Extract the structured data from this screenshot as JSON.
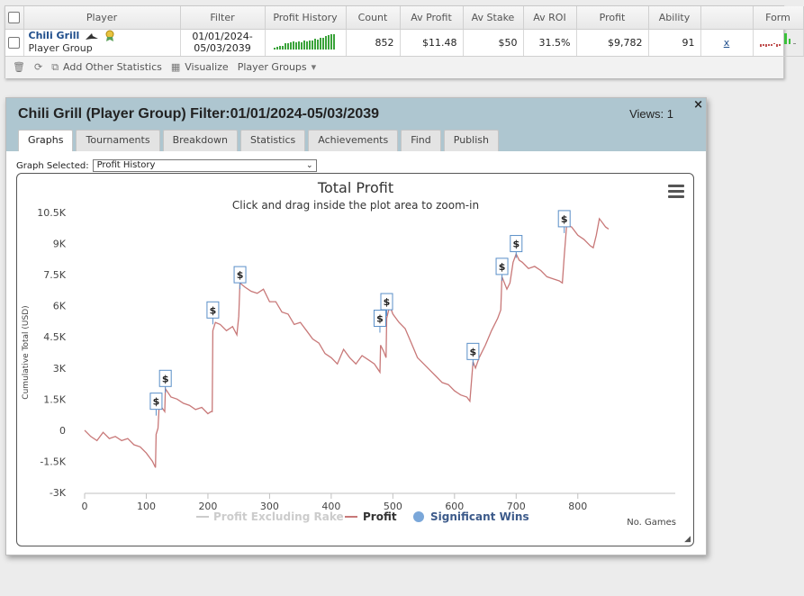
{
  "stats_table": {
    "headers": [
      "Player",
      "Filter",
      "Profit History",
      "Count",
      "Av Profit",
      "Av Stake",
      "Av ROI",
      "Profit",
      "Ability",
      "",
      "Form"
    ],
    "row": {
      "player_name": "Chili Grill",
      "player_type": "Player Group",
      "filter_line1": "01/01/2024-",
      "filter_line2": "05/03/2039",
      "count": "852",
      "av_profit": "$11.48",
      "av_stake": "$50",
      "av_roi": "31.5%",
      "profit": "$9,782",
      "ability": "91",
      "link": "x"
    },
    "toolbar": {
      "add_label": "Add Other Statistics",
      "visualize_label": "Visualize",
      "groups_label": "Player Groups"
    }
  },
  "panel": {
    "title": "Chili Grill (Player Group) Filter:01/01/2024-05/03/2039",
    "views": "Views: 1",
    "close": "×",
    "tabs": [
      "Graphs",
      "Tournaments",
      "Breakdown",
      "Statistics",
      "Achievements",
      "Find",
      "Publish"
    ],
    "active_tab": 0,
    "graph_selected_label": "Graph Selected:",
    "graph_selected_value": "Profit History"
  },
  "chart_data": {
    "type": "line",
    "title": "Total Profit",
    "subtitle": "Click and drag inside the plot area to zoom-in",
    "xlabel": "No. Games",
    "ylabel": "Cumulative Total (USD)",
    "xlim": [
      0,
      850
    ],
    "ylim": [
      -3000,
      10500
    ],
    "x_ticks": [
      "0",
      "100",
      "200",
      "300",
      "400",
      "500",
      "600",
      "700",
      "800"
    ],
    "y_ticks": [
      "-3K",
      "-1.5K",
      "0",
      "1.5K",
      "3K",
      "4.5K",
      "6K",
      "7.5K",
      "9K",
      "10.5K"
    ],
    "legend": [
      "Profit Excluding Rake",
      "Profit",
      "Significant Wins"
    ],
    "colors": {
      "profit": "#c87878",
      "excl_rake": "#cccccc",
      "wins": "#7aa7d9"
    },
    "series": [
      {
        "name": "Profit",
        "points": [
          [
            0,
            0
          ],
          [
            10,
            -300
          ],
          [
            20,
            -500
          ],
          [
            30,
            -100
          ],
          [
            40,
            -400
          ],
          [
            50,
            -300
          ],
          [
            60,
            -500
          ],
          [
            70,
            -400
          ],
          [
            80,
            -700
          ],
          [
            90,
            -800
          ],
          [
            100,
            -1100
          ],
          [
            110,
            -1500
          ],
          [
            115,
            -1800
          ],
          [
            116,
            -200
          ],
          [
            119,
            100
          ],
          [
            121,
            1200
          ],
          [
            125,
            1100
          ],
          [
            130,
            900
          ],
          [
            131,
            2000
          ],
          [
            140,
            1600
          ],
          [
            150,
            1500
          ],
          [
            160,
            1300
          ],
          [
            170,
            1200
          ],
          [
            180,
            1000
          ],
          [
            190,
            1100
          ],
          [
            200,
            800
          ],
          [
            205,
            900
          ],
          [
            207,
            900
          ],
          [
            208,
            4800
          ],
          [
            212,
            5200
          ],
          [
            220,
            5100
          ],
          [
            230,
            4800
          ],
          [
            240,
            5000
          ],
          [
            247,
            4600
          ],
          [
            250,
            5500
          ],
          [
            252,
            7100
          ],
          [
            260,
            6900
          ],
          [
            270,
            6700
          ],
          [
            280,
            6600
          ],
          [
            290,
            6800
          ],
          [
            300,
            6200
          ],
          [
            310,
            6200
          ],
          [
            320,
            5700
          ],
          [
            330,
            5600
          ],
          [
            340,
            5100
          ],
          [
            350,
            5200
          ],
          [
            360,
            4800
          ],
          [
            370,
            4400
          ],
          [
            380,
            4200
          ],
          [
            390,
            3700
          ],
          [
            400,
            3500
          ],
          [
            410,
            3200
          ],
          [
            420,
            3900
          ],
          [
            430,
            3500
          ],
          [
            440,
            3200
          ],
          [
            450,
            3600
          ],
          [
            460,
            3400
          ],
          [
            470,
            3200
          ],
          [
            479,
            2800
          ],
          [
            480,
            4100
          ],
          [
            485,
            3800
          ],
          [
            489,
            3500
          ],
          [
            490,
            5400
          ],
          [
            495,
            6000
          ],
          [
            500,
            5600
          ],
          [
            510,
            5200
          ],
          [
            520,
            4900
          ],
          [
            530,
            4200
          ],
          [
            540,
            3500
          ],
          [
            550,
            3200
          ],
          [
            560,
            2900
          ],
          [
            570,
            2600
          ],
          [
            580,
            2300
          ],
          [
            590,
            2200
          ],
          [
            600,
            1900
          ],
          [
            610,
            1700
          ],
          [
            620,
            1600
          ],
          [
            625,
            1400
          ],
          [
            630,
            3300
          ],
          [
            634,
            3000
          ],
          [
            640,
            3500
          ],
          [
            650,
            4100
          ],
          [
            660,
            4800
          ],
          [
            670,
            5400
          ],
          [
            675,
            5800
          ],
          [
            677,
            7400
          ],
          [
            685,
            6800
          ],
          [
            690,
            7100
          ],
          [
            695,
            8100
          ],
          [
            700,
            8500
          ],
          [
            705,
            8200
          ],
          [
            710,
            8100
          ],
          [
            720,
            7800
          ],
          [
            730,
            7900
          ],
          [
            740,
            7700
          ],
          [
            750,
            7400
          ],
          [
            760,
            7300
          ],
          [
            770,
            7200
          ],
          [
            775,
            7100
          ],
          [
            778,
            8400
          ],
          [
            782,
            9900
          ],
          [
            790,
            9800
          ],
          [
            800,
            9400
          ],
          [
            810,
            9200
          ],
          [
            820,
            8900
          ],
          [
            825,
            8800
          ],
          [
            830,
            9400
          ],
          [
            835,
            10200
          ],
          [
            840,
            10000
          ],
          [
            845,
            9800
          ],
          [
            850,
            9700
          ]
        ]
      }
    ],
    "significant_wins": [
      [
        116,
        1400
      ],
      [
        131,
        2500
      ],
      [
        208,
        5800
      ],
      [
        252,
        7500
      ],
      [
        479,
        5400
      ],
      [
        490,
        6200
      ],
      [
        630,
        3800
      ],
      [
        677,
        7900
      ],
      [
        700,
        9000
      ],
      [
        778,
        10200
      ]
    ],
    "marker_label": "$"
  }
}
